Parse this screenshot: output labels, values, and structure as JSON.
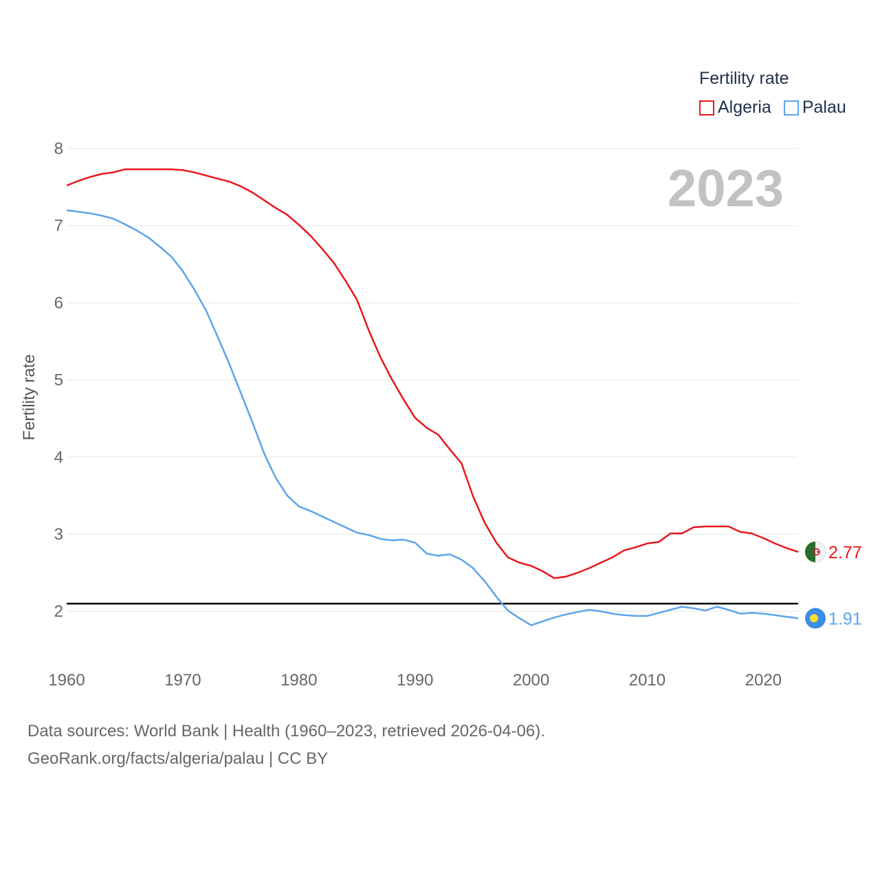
{
  "colors": {
    "algeria": "#e8161c",
    "palau": "#5aa4ea",
    "reference": "#000000",
    "grid": "#e6e6e6",
    "year_label": "#c2c2c2"
  },
  "legend": {
    "title": "Fertility rate",
    "items": [
      {
        "label": "Algeria",
        "color": "#e8161c"
      },
      {
        "label": "Palau",
        "color": "#5aa4ea"
      }
    ]
  },
  "footer": {
    "sources": "Data sources: World Bank | Health (1960–2023, retrieved 2026-04-06).",
    "link": "GeoRank.org/facts/algeria/palau | CC BY"
  },
  "chart_data": {
    "type": "line",
    "year_label": "2023",
    "ylabel": "Fertility rate",
    "xlabel": "",
    "xlim": [
      1960,
      2023
    ],
    "ylim": [
      1.2,
      8.0
    ],
    "yticks": [
      2,
      3,
      4,
      5,
      6,
      7,
      8
    ],
    "xticks": [
      1960,
      1970,
      1980,
      1990,
      2000,
      2010,
      2020
    ],
    "grid": true,
    "reference_line": 2.1,
    "x": [
      1960,
      1961,
      1962,
      1963,
      1964,
      1965,
      1966,
      1967,
      1968,
      1969,
      1970,
      1971,
      1972,
      1973,
      1974,
      1975,
      1976,
      1977,
      1978,
      1979,
      1980,
      1981,
      1982,
      1983,
      1984,
      1985,
      1986,
      1987,
      1988,
      1989,
      1990,
      1991,
      1992,
      1993,
      1994,
      1995,
      1996,
      1997,
      1998,
      1999,
      2000,
      2001,
      2002,
      2003,
      2004,
      2005,
      2006,
      2007,
      2008,
      2009,
      2010,
      2011,
      2012,
      2013,
      2014,
      2015,
      2016,
      2017,
      2018,
      2019,
      2020,
      2021,
      2022,
      2023
    ],
    "series": [
      {
        "name": "Algeria",
        "end_value": "2.77",
        "values": [
          7.52,
          7.58,
          7.63,
          7.67,
          7.69,
          7.73,
          7.73,
          7.73,
          7.73,
          7.73,
          7.72,
          7.69,
          7.65,
          7.61,
          7.57,
          7.51,
          7.43,
          7.33,
          7.23,
          7.14,
          7.01,
          6.87,
          6.7,
          6.52,
          6.29,
          6.04,
          5.65,
          5.3,
          5.01,
          4.75,
          4.51,
          4.38,
          4.29,
          4.1,
          3.92,
          3.49,
          3.15,
          2.89,
          2.7,
          2.63,
          2.59,
          2.52,
          2.43,
          2.45,
          2.5,
          2.56,
          2.63,
          2.7,
          2.79,
          2.83,
          2.88,
          2.9,
          3.01,
          3.01,
          3.09,
          3.1,
          3.1,
          3.1,
          3.03,
          3.01,
          2.95,
          2.88,
          2.82,
          2.77
        ]
      },
      {
        "name": "Palau",
        "end_value": "1.91",
        "values": [
          7.2,
          7.18,
          7.16,
          7.13,
          7.09,
          7.02,
          6.94,
          6.85,
          6.73,
          6.6,
          6.41,
          6.17,
          5.9,
          5.56,
          5.21,
          4.83,
          4.45,
          4.05,
          3.73,
          3.5,
          3.36,
          3.3,
          3.23,
          3.16,
          3.09,
          3.02,
          2.99,
          2.94,
          2.92,
          2.93,
          2.89,
          2.75,
          2.72,
          2.74,
          2.67,
          2.56,
          2.39,
          2.19,
          2.01,
          1.91,
          1.82,
          1.87,
          1.92,
          1.96,
          1.99,
          2.02,
          2.0,
          1.97,
          1.95,
          1.94,
          1.94,
          1.98,
          2.02,
          2.06,
          2.04,
          2.01,
          2.06,
          2.02,
          1.97,
          1.98,
          1.97,
          1.95,
          1.93,
          1.91
        ]
      }
    ]
  }
}
